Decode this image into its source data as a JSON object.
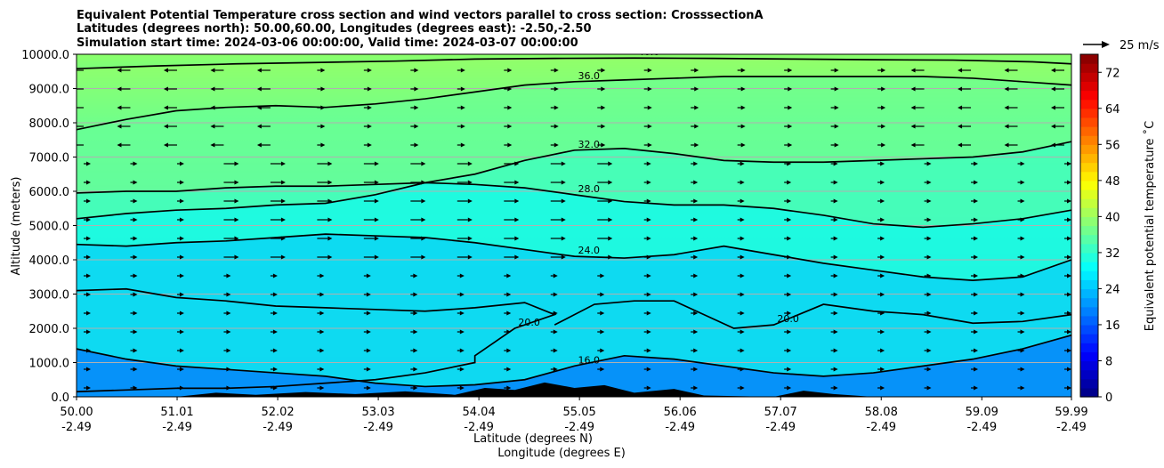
{
  "chart_data": {
    "type": "heatmap",
    "title_lines": [
      "Equivalent Potential Temperature cross section and wind vectors parallel to cross section: CrosssectionA",
      "Latitudes (degrees north): 50.00,60.00, Longitudes (degrees east): -2.50,-2.50",
      "Simulation start time: 2024-03-06 00:00:00, Valid time: 2024-03-07 00:00:00"
    ],
    "xlabel_lines": [
      "Latitude (degrees N)",
      "Longitude (degrees E)"
    ],
    "ylabel": "Altitude (meters)",
    "x_ticks": [
      {
        "lat": "50.00",
        "lon": "-2.49",
        "value": 50.0
      },
      {
        "lat": "51.01",
        "lon": "-2.49",
        "value": 51.01
      },
      {
        "lat": "52.02",
        "lon": "-2.49",
        "value": 52.02
      },
      {
        "lat": "53.03",
        "lon": "-2.49",
        "value": 53.03
      },
      {
        "lat": "54.04",
        "lon": "-2.49",
        "value": 54.04
      },
      {
        "lat": "55.05",
        "lon": "-2.49",
        "value": 55.05
      },
      {
        "lat": "56.06",
        "lon": "-2.49",
        "value": 56.06
      },
      {
        "lat": "57.07",
        "lon": "-2.49",
        "value": 57.07
      },
      {
        "lat": "58.08",
        "lon": "-2.49",
        "value": 58.08
      },
      {
        "lat": "59.09",
        "lon": "-2.49",
        "value": 59.09
      },
      {
        "lat": "59.99",
        "lon": "-2.49",
        "value": 59.99
      }
    ],
    "xlim": [
      50.0,
      59.99
    ],
    "y_ticks": [
      "0.0",
      "1000.0",
      "2000.0",
      "3000.0",
      "4000.0",
      "5000.0",
      "6000.0",
      "7000.0",
      "8000.0",
      "9000.0",
      "10000.0"
    ],
    "ylim": [
      0,
      10000
    ],
    "grid": "horizontal",
    "colorbar": {
      "label": "Equivalent potential temperature ˚C",
      "ticks": [
        "0",
        "8",
        "16",
        "24",
        "32",
        "40",
        "48",
        "56",
        "64",
        "72"
      ],
      "range": [
        0,
        76
      ],
      "colormap": "jet"
    },
    "quiver_key": "25 m/s",
    "contour_lines": [
      {
        "level": "40.0",
        "x": [
          50.0,
          50.8,
          51.6,
          52.4,
          53.2,
          54.0,
          54.8,
          55.6,
          56.4,
          57.2,
          58.0,
          58.8,
          59.6,
          59.99
        ],
        "y": [
          9580,
          9660,
          9720,
          9760,
          9800,
          9860,
          9880,
          9890,
          9880,
          9860,
          9840,
          9830,
          9780,
          9720
        ]
      },
      {
        "level": "36.0",
        "x": [
          50.0,
          50.5,
          51.0,
          51.5,
          52.0,
          52.5,
          53.0,
          53.5,
          54.0,
          54.5,
          55.0,
          55.5,
          56.0,
          56.5,
          57.0,
          57.5,
          58.0,
          58.5,
          59.0,
          59.5,
          59.99
        ],
        "y": [
          7800,
          8100,
          8350,
          8450,
          8500,
          8450,
          8550,
          8700,
          8900,
          9100,
          9200,
          9250,
          9300,
          9350,
          9350,
          9350,
          9350,
          9350,
          9300,
          9200,
          9100
        ]
      },
      {
        "level": "32.0",
        "x": [
          50.0,
          50.5,
          51.0,
          51.5,
          52.0,
          52.5,
          53.0,
          53.5,
          54.0,
          54.5,
          55.0,
          55.5,
          56.0,
          56.5,
          57.0,
          57.5,
          58.0,
          58.5,
          59.0,
          59.5,
          59.99
        ],
        "y": [
          5950,
          6000,
          6000,
          6100,
          6150,
          6150,
          6200,
          6250,
          6500,
          6900,
          7200,
          7250,
          7100,
          6900,
          6850,
          6850,
          6900,
          6950,
          7000,
          7150,
          7450
        ]
      },
      {
        "level": "28.0",
        "x": [
          50.0,
          50.5,
          51.0,
          51.5,
          52.0,
          52.5,
          53.0,
          53.5,
          54.0,
          54.5,
          55.0,
          55.5,
          56.0,
          56.5,
          57.0,
          57.5,
          58.0,
          58.5,
          59.0,
          59.5,
          59.99
        ],
        "y": [
          5200,
          5350,
          5450,
          5500,
          5600,
          5650,
          5900,
          6250,
          6200,
          6100,
          5900,
          5700,
          5600,
          5600,
          5500,
          5300,
          5050,
          4950,
          5050,
          5200,
          5450
        ]
      },
      {
        "level": "24.0",
        "x": [
          50.0,
          50.5,
          51.0,
          51.5,
          52.0,
          52.5,
          53.0,
          53.5,
          54.0,
          54.5,
          55.0,
          55.5,
          56.0,
          56.5,
          57.0,
          57.5,
          58.0,
          58.5,
          59.0,
          59.5,
          59.99
        ],
        "y": [
          4450,
          4400,
          4500,
          4550,
          4650,
          4750,
          4700,
          4650,
          4500,
          4300,
          4100,
          4050,
          4150,
          4400,
          4150,
          3900,
          3700,
          3500,
          3400,
          3500,
          4000
        ]
      },
      {
        "level": "20.0",
        "x": [
          50.0,
          50.5,
          51.0,
          51.5,
          52.0,
          52.5,
          53.0,
          53.5,
          54.0,
          54.5,
          54.8,
          54.4,
          54.2,
          54.0,
          54.0,
          53.5,
          53.0,
          52.5,
          52.0,
          51.5,
          51.0,
          50.5,
          50.0
        ],
        "y": [
          3100,
          3150,
          2900,
          2800,
          2650,
          2600,
          2550,
          2500,
          2600,
          2750,
          2400,
          2000,
          1600,
          1200,
          1000,
          700,
          500,
          400,
          300,
          250,
          250,
          200,
          150
        ]
      },
      {
        "level": "16.0",
        "x": [
          50.0,
          50.5,
          51.0,
          51.5,
          52.0,
          52.5,
          53.0,
          53.5,
          54.0,
          54.5,
          55.0,
          55.5,
          56.0,
          56.5,
          57.0,
          57.5,
          58.0,
          58.5,
          59.0,
          59.5,
          59.99
        ],
        "y": [
          1400,
          1100,
          900,
          800,
          700,
          600,
          400,
          300,
          350,
          500,
          900,
          1200,
          1100,
          900,
          700,
          600,
          700,
          900,
          1100,
          1400,
          1800
        ]
      },
      {
        "level": "20.0",
        "x": [
          54.8,
          55.2,
          55.6,
          56.0,
          56.3,
          56.6,
          57.0,
          57.5,
          58.0,
          58.5,
          59.0,
          59.5,
          59.99
        ],
        "y": [
          2100,
          2700,
          2800,
          2800,
          2400,
          2000,
          2100,
          2700,
          2500,
          2400,
          2150,
          2200,
          2400
        ]
      }
    ]
  }
}
